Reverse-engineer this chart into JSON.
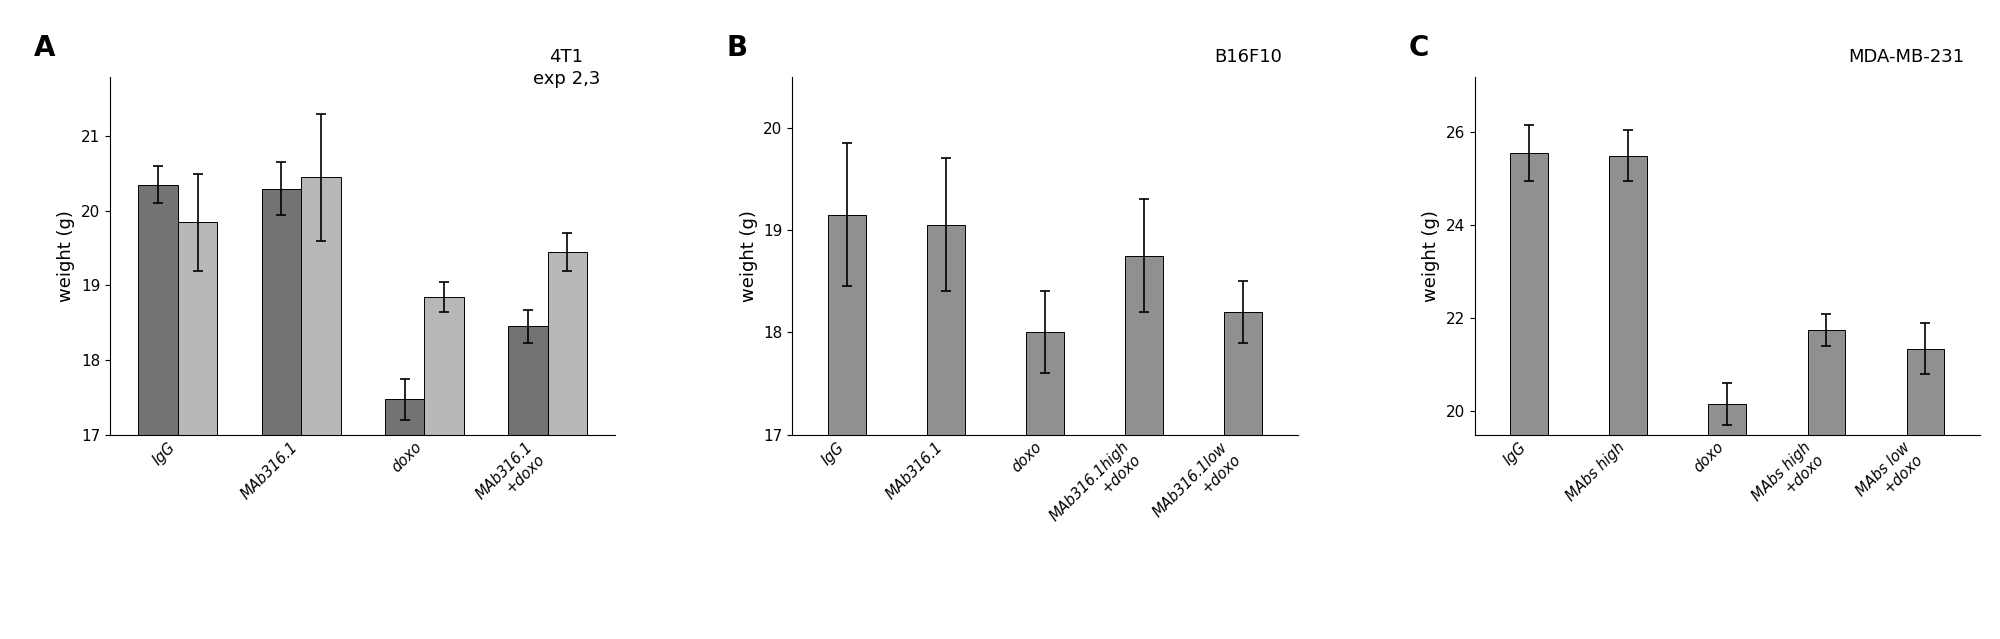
{
  "panel_A": {
    "title": "4T1\nexp 2,3",
    "ylabel": "weight (g)",
    "ylim": [
      17,
      21.8
    ],
    "yticks": [
      17,
      18,
      19,
      20,
      21
    ],
    "categories": [
      "IgG",
      "MAb316.1",
      "doxo",
      "MAb316.1\n+doxo"
    ],
    "dark_values": [
      20.35,
      20.3,
      17.47,
      18.45
    ],
    "light_values": [
      19.85,
      20.45,
      18.85,
      19.45
    ],
    "dark_errors": [
      0.25,
      0.35,
      0.28,
      0.22
    ],
    "light_errors": [
      0.65,
      0.85,
      0.2,
      0.25
    ],
    "dark_color": "#737373",
    "light_color": "#b8b8b8",
    "label": "A"
  },
  "panel_B": {
    "title": "B16F10",
    "ylabel": "weight (g)",
    "ylim": [
      17,
      20.5
    ],
    "yticks": [
      17,
      18,
      19,
      20
    ],
    "categories": [
      "IgG",
      "MAb316.1",
      "doxo",
      "MAb316.1high\n+doxo",
      "MAb316.1low\n+doxo"
    ],
    "values": [
      19.15,
      19.05,
      18.0,
      18.75,
      18.2
    ],
    "errors": [
      0.7,
      0.65,
      0.4,
      0.55,
      0.3
    ],
    "bar_color": "#909090",
    "label": "B"
  },
  "panel_C": {
    "title": "MDA-MB-231",
    "ylabel": "weight (g)",
    "ylim": [
      19.5,
      27.2
    ],
    "yticks": [
      20,
      22,
      24,
      26
    ],
    "categories": [
      "IgG",
      "MAbs high",
      "doxo",
      "MAbs high\n+doxo",
      "MAbs low\n+doxo"
    ],
    "values": [
      25.55,
      25.5,
      20.15,
      21.75,
      21.35
    ],
    "errors": [
      0.6,
      0.55,
      0.45,
      0.35,
      0.55
    ],
    "bar_color": "#909090",
    "label": "C"
  },
  "background_color": "#ffffff",
  "label_fontsize": 20,
  "title_fontsize": 13,
  "tick_fontsize": 11,
  "ylabel_fontsize": 13,
  "xtick_fontsize": 10.5
}
